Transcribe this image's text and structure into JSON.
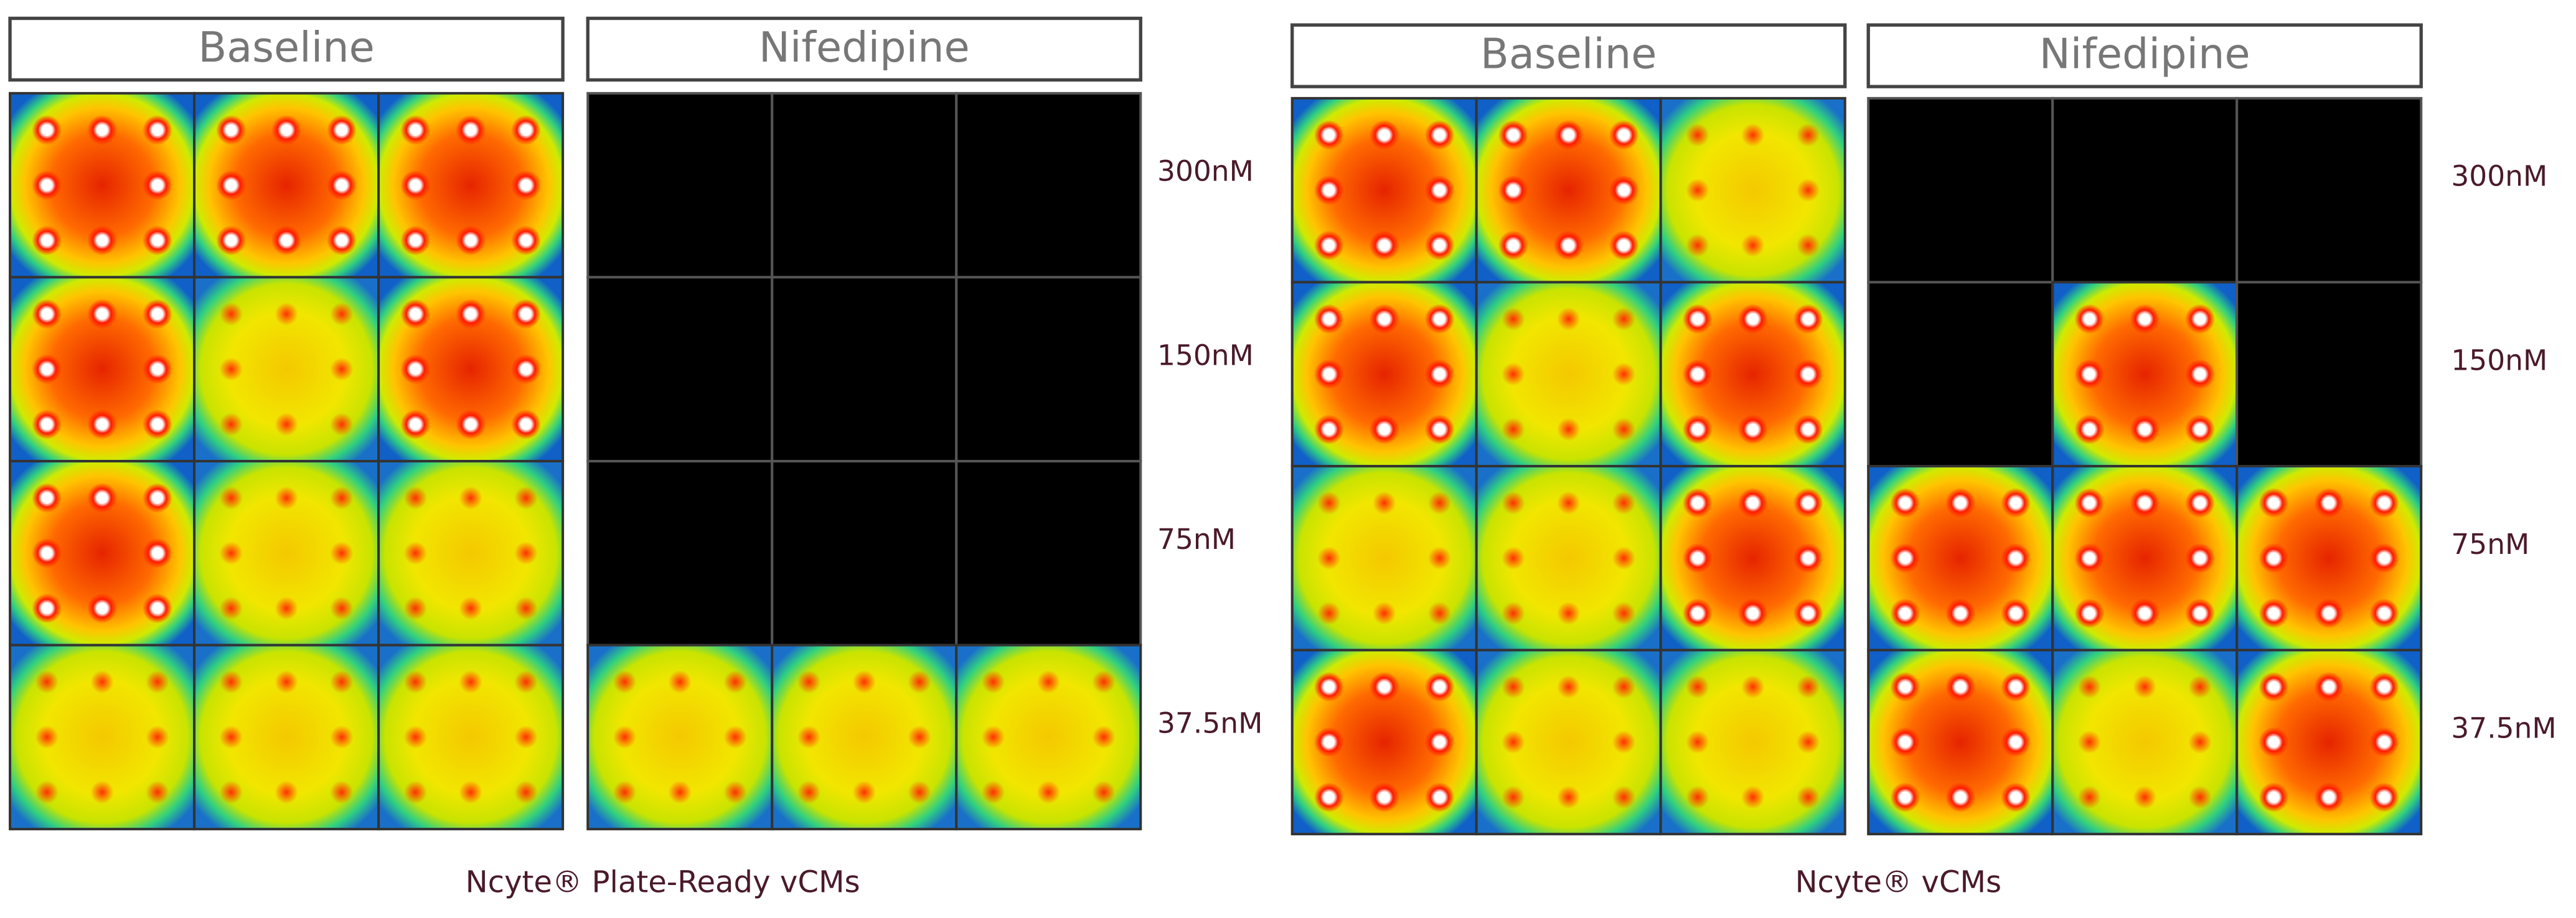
{
  "panels": [
    {
      "conditions": [
        "Baseline",
        "Nifedipine"
      ],
      "row_labels": [
        "300nM",
        "150nM",
        "75nM",
        "37.5nM"
      ],
      "caption": "Ncyte® Plate-Ready vCMs"
    },
    {
      "conditions": [
        "Baseline",
        "Nifedipine"
      ],
      "row_labels": [
        "300nM",
        "150nM",
        "75nM",
        "37.5nM"
      ],
      "caption": "Ncyte® vCMs"
    }
  ]
}
